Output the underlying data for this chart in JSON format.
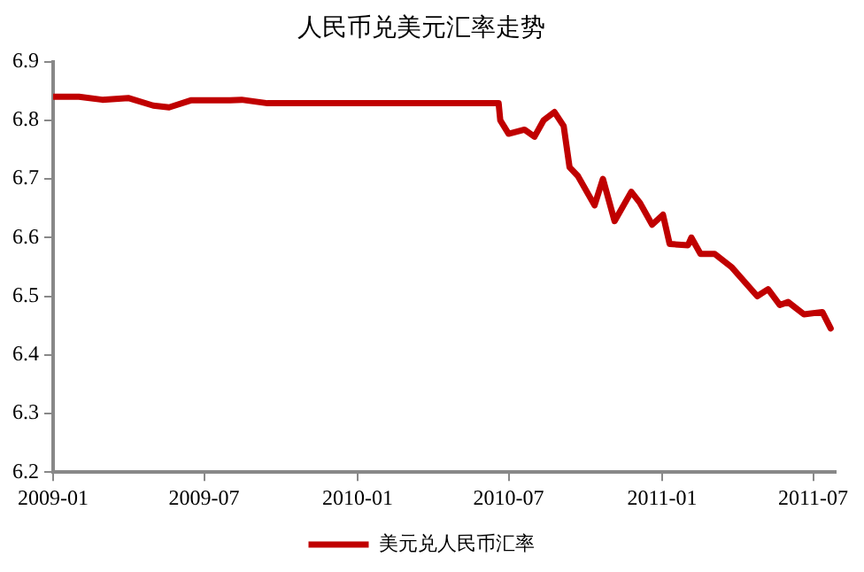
{
  "chart_data": {
    "type": "line",
    "title": "人民币兑美元汇率走势",
    "x": [
      "2009-01-01",
      "2009-02-01",
      "2009-03-01",
      "2009-04-01",
      "2009-05-01",
      "2009-05-20",
      "2009-06-15",
      "2009-08-01",
      "2009-08-15",
      "2009-09-15",
      "2010-06-19",
      "2010-06-21",
      "2010-07-01",
      "2010-07-20",
      "2010-08-01",
      "2010-08-12",
      "2010-08-25",
      "2010-09-05",
      "2010-09-12",
      "2010-09-22",
      "2010-10-12",
      "2010-10-22",
      "2010-11-05",
      "2010-11-25",
      "2010-12-05",
      "2010-12-20",
      "2011-01-02",
      "2011-01-10",
      "2011-02-01",
      "2011-02-05",
      "2011-02-16",
      "2011-03-05",
      "2011-03-25",
      "2011-04-25",
      "2011-05-08",
      "2011-05-22",
      "2011-06-01",
      "2011-06-20",
      "2011-07-12",
      "2011-07-22"
    ],
    "series": [
      {
        "name": "美元兑人民币汇率",
        "color": "#c00000",
        "values": [
          6.84,
          6.84,
          6.835,
          6.838,
          6.825,
          6.822,
          6.834,
          6.834,
          6.835,
          6.829,
          6.829,
          6.8,
          6.777,
          6.784,
          6.772,
          6.8,
          6.814,
          6.79,
          6.72,
          6.705,
          6.655,
          6.7,
          6.628,
          6.678,
          6.66,
          6.622,
          6.639,
          6.589,
          6.587,
          6.6,
          6.572,
          6.572,
          6.55,
          6.5,
          6.512,
          6.485,
          6.49,
          6.469,
          6.473,
          6.445
        ]
      }
    ],
    "xlim": [
      "2009-01-01",
      "2011-07-28"
    ],
    "xticks": [
      "2009-01",
      "2009-07",
      "2010-01",
      "2010-07",
      "2011-01",
      "2011-07"
    ],
    "ylim": [
      6.2,
      6.9
    ],
    "yticks": [
      6.2,
      6.3,
      6.4,
      6.5,
      6.6,
      6.7,
      6.8,
      6.9
    ],
    "grid": false,
    "legend": "bottom",
    "marker": "none",
    "line_style": "solid"
  }
}
